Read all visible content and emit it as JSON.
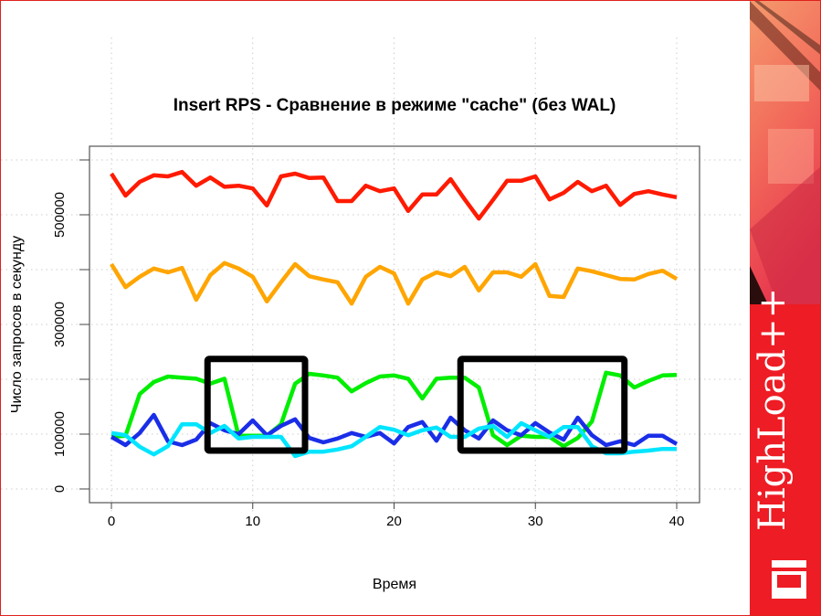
{
  "chart_data": {
    "type": "line",
    "title": "Insert RPS - Сравнение в режиме \"cache\" (без WAL)",
    "xlabel": "Время",
    "ylabel": "Число запросов в секунду",
    "xlim": [
      0,
      40
    ],
    "ylim": [
      0,
      600000
    ],
    "x_ticks": [
      0,
      10,
      20,
      30,
      40
    ],
    "x_tick_labels": [
      "0",
      "10",
      "20",
      "30",
      "40"
    ],
    "y_ticks": [
      0,
      100000,
      200000,
      300000,
      400000,
      500000,
      600000
    ],
    "y_tick_labels": [
      "0",
      "100000",
      "",
      "300000",
      "",
      "500000",
      ""
    ],
    "grid": true,
    "x": [
      0,
      1,
      2,
      3,
      4,
      5,
      6,
      7,
      8,
      9,
      10,
      11,
      12,
      13,
      14,
      15,
      16,
      17,
      18,
      19,
      20,
      21,
      22,
      23,
      24,
      25,
      26,
      27,
      28,
      29,
      30,
      31,
      32,
      33,
      34,
      35,
      36,
      37,
      38,
      39,
      40
    ],
    "series": [
      {
        "color": "#ff1a00",
        "values": [
          575000,
          535000,
          560000,
          572000,
          570000,
          578000,
          553000,
          568000,
          551000,
          553000,
          548000,
          517000,
          570000,
          575000,
          567000,
          568000,
          525000,
          525000,
          553000,
          543000,
          548000,
          507000,
          537000,
          537000,
          565000,
          528000,
          493000,
          527000,
          562000,
          562000,
          570000,
          528000,
          540000,
          560000,
          543000,
          553000,
          518000,
          538000,
          543000,
          537000,
          532000
        ]
      },
      {
        "color": "#ffa500",
        "values": [
          410000,
          368000,
          387000,
          402000,
          395000,
          403000,
          345000,
          390000,
          412000,
          402000,
          387000,
          342000,
          377000,
          410000,
          388000,
          382000,
          377000,
          338000,
          387000,
          405000,
          393000,
          338000,
          382000,
          395000,
          388000,
          405000,
          362000,
          395000,
          395000,
          387000,
          410000,
          352000,
          350000,
          402000,
          397000,
          390000,
          383000,
          382000,
          392000,
          398000,
          383000
        ]
      },
      {
        "color": "#00ee00",
        "values": [
          95000,
          97000,
          173000,
          195000,
          205000,
          203000,
          201000,
          192000,
          201000,
          97000,
          97000,
          97000,
          118000,
          192000,
          210000,
          207000,
          203000,
          178000,
          193000,
          205000,
          207000,
          201000,
          165000,
          201000,
          203000,
          203000,
          185000,
          98000,
          80000,
          97000,
          95000,
          95000,
          78000,
          93000,
          123000,
          212000,
          207000,
          185000,
          197000,
          207000,
          208000
        ]
      },
      {
        "color": "#1a2ee8",
        "values": [
          95000,
          80000,
          102000,
          135000,
          87000,
          80000,
          90000,
          120000,
          107000,
          100000,
          125000,
          98000,
          115000,
          127000,
          93000,
          85000,
          92000,
          102000,
          95000,
          102000,
          83000,
          113000,
          122000,
          88000,
          130000,
          107000,
          92000,
          125000,
          107000,
          98000,
          120000,
          103000,
          90000,
          130000,
          98000,
          80000,
          87000,
          80000,
          97000,
          97000,
          82000
        ]
      },
      {
        "color": "#00e5ff",
        "values": [
          102000,
          98000,
          77000,
          63000,
          78000,
          118000,
          118000,
          102000,
          115000,
          92000,
          95000,
          95000,
          95000,
          60000,
          68000,
          68000,
          72000,
          78000,
          95000,
          113000,
          108000,
          98000,
          107000,
          112000,
          95000,
          95000,
          110000,
          115000,
          95000,
          120000,
          107000,
          95000,
          113000,
          113000,
          78000,
          65000,
          65000,
          68000,
          70000,
          73000,
          73000
        ]
      }
    ],
    "highlight_regions": [
      {
        "x": [
          6.8,
          13.7
        ],
        "y": [
          70000,
          237000
        ]
      },
      {
        "x": [
          24.7,
          36.3
        ],
        "y": [
          70000,
          237000
        ]
      }
    ]
  },
  "brand": {
    "name": "HighLoad++",
    "accent": "#ee1c24"
  }
}
